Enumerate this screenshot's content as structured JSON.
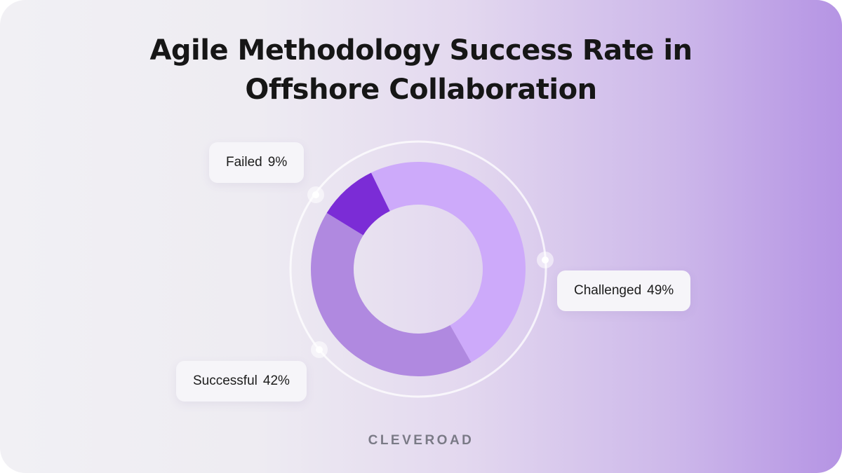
{
  "title_line1": "Agile Methodology Success Rate in",
  "title_line2": "Offshore Collaboration",
  "brand": "CLEVEROAD",
  "colors": {
    "challenged": "#cdaafa",
    "successful": "#b089e0",
    "failed": "#7b2cd6",
    "background_start": "#f1f0f4",
    "background_end": "#b594e4"
  },
  "labels": {
    "challenged": {
      "name": "Challenged",
      "pct": "49%"
    },
    "successful": {
      "name": "Successful",
      "pct": "42%"
    },
    "failed": {
      "name": "Failed",
      "pct": "9%"
    }
  },
  "chart_data": {
    "type": "pie",
    "variant": "donut",
    "title": "Agile Methodology Success Rate in Offshore Collaboration",
    "categories": [
      "Challenged",
      "Successful",
      "Failed"
    ],
    "values": [
      49,
      42,
      9
    ],
    "unit": "%",
    "legend": "callout labels"
  }
}
